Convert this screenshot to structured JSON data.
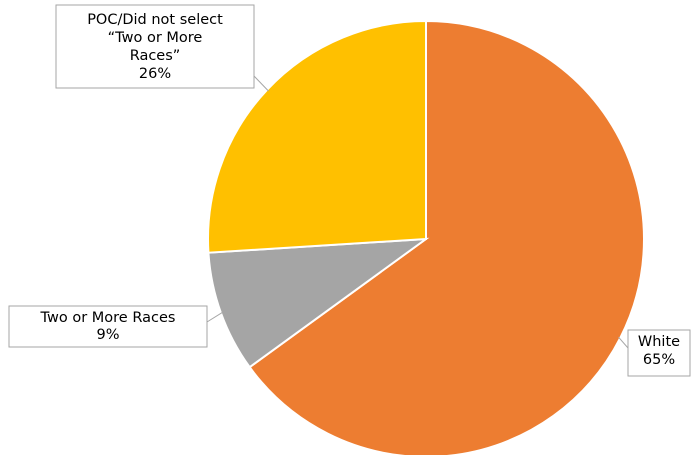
{
  "chart_data": {
    "type": "pie",
    "title": "",
    "slices": [
      {
        "label": "White",
        "value": 65,
        "value_label": "65%",
        "color": "#ED7D31"
      },
      {
        "label": "Two or More Races",
        "value": 9,
        "value_label": "9%",
        "color": "#A5A5A5"
      },
      {
        "label": "POC/Did not select “Two or More Races”",
        "value": 26,
        "value_label": "26%",
        "color": "#FFC000"
      }
    ],
    "start_angle_deg": 0,
    "direction": "clockwise",
    "data_labels": "callouts",
    "legend": "none"
  }
}
